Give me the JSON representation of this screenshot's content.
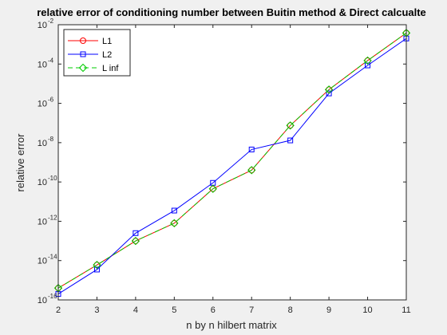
{
  "chart_data": {
    "type": "line",
    "title": "relative error of conditioning number between Buitin method & Direct calcualte",
    "xlabel": "n by n hilbert matrix",
    "ylabel": "relative error",
    "y_scale": "log",
    "xlim": [
      2,
      11
    ],
    "ylim": [
      1e-16,
      0.01
    ],
    "x_ticks": [
      "2",
      "3",
      "4",
      "5",
      "6",
      "7",
      "8",
      "9",
      "10",
      "11"
    ],
    "y_ticks": [
      {
        "base": "10",
        "exp": "-16",
        "value": 1e-16
      },
      {
        "base": "10",
        "exp": "-14",
        "value": 1e-14
      },
      {
        "base": "10",
        "exp": "-12",
        "value": 1e-12
      },
      {
        "base": "10",
        "exp": "-10",
        "value": 1e-10
      },
      {
        "base": "10",
        "exp": "-8",
        "value": 1e-08
      },
      {
        "base": "10",
        "exp": "-6",
        "value": 1e-06
      },
      {
        "base": "10",
        "exp": "-4",
        "value": 0.0001
      },
      {
        "base": "10",
        "exp": "-2",
        "value": 0.01
      }
    ],
    "grid": false,
    "legend_position": "top-left",
    "x": [
      2,
      3,
      4,
      5,
      6,
      7,
      8,
      9,
      10,
      11
    ],
    "series": [
      {
        "name": "L1",
        "color": "#ff0000",
        "marker": "circle",
        "line": "solid",
        "values": [
          4e-16,
          6e-15,
          1e-13,
          8e-13,
          4.5e-11,
          4e-10,
          7.5e-08,
          5e-06,
          0.00015,
          0.0038
        ]
      },
      {
        "name": "L2",
        "color": "#0000ff",
        "marker": "square",
        "line": "solid",
        "values": [
          2e-16,
          3.5e-15,
          2.5e-13,
          3.5e-12,
          9e-11,
          4.5e-09,
          1.3e-08,
          3.2e-06,
          8.5e-05,
          0.002
        ]
      },
      {
        "name": "L inf",
        "color": "#00cc00",
        "marker": "diamond",
        "line": "dashed",
        "values": [
          4e-16,
          6e-15,
          1e-13,
          8e-13,
          4.5e-11,
          4e-10,
          7.5e-08,
          5e-06,
          0.00015,
          0.0038
        ]
      }
    ]
  }
}
